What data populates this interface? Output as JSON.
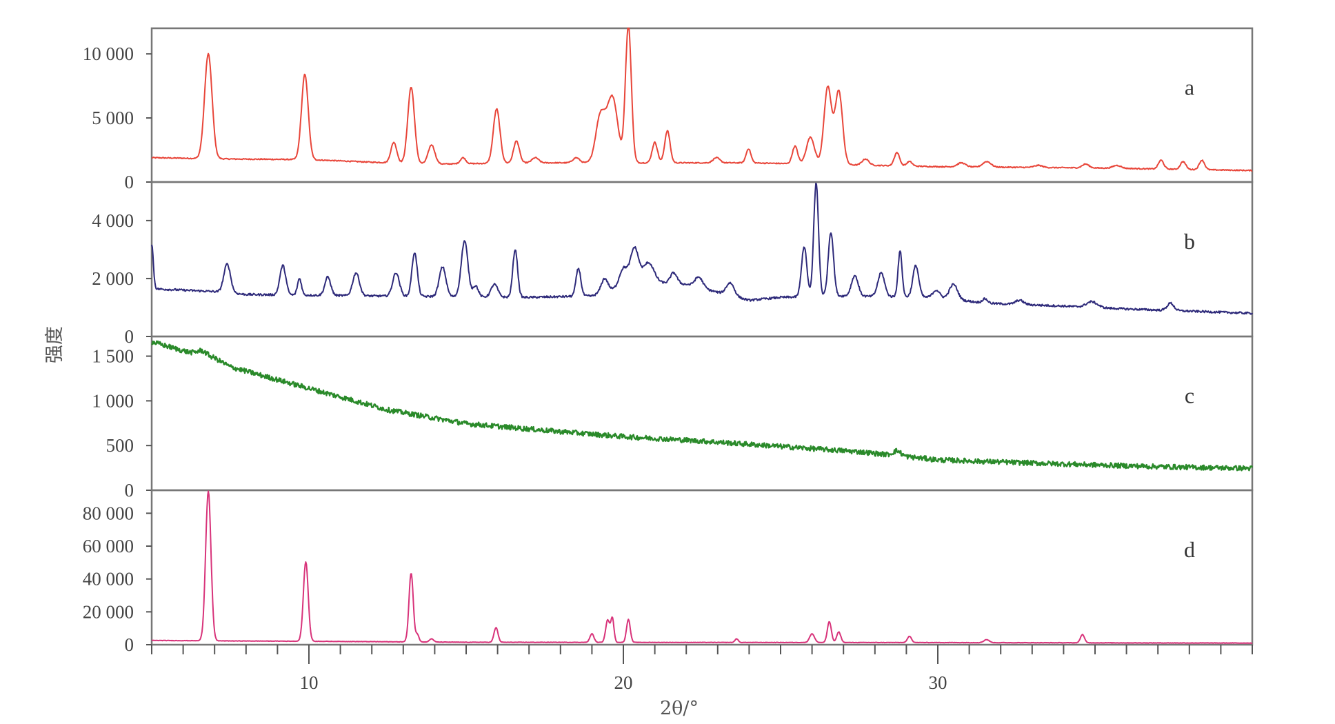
{
  "chart_data": {
    "type": "line",
    "layout": "stacked-panels",
    "xlabel": "2θ/°",
    "ylabel": "强度",
    "xlim": [
      5,
      40
    ],
    "xticks": [
      10,
      20,
      30
    ],
    "xtick_labels": [
      "10",
      "20",
      "30"
    ],
    "x_minor_step": 1,
    "grid": false,
    "panels": [
      {
        "label": "a",
        "color": "#e8463a",
        "ylim": [
          0,
          12000
        ],
        "yticks": [
          0,
          5000,
          10000
        ],
        "ytick_labels": [
          "0",
          "5 000",
          "10 000"
        ],
        "baseline": [
          [
            5,
            1900
          ],
          [
            7.5,
            1800
          ],
          [
            10,
            1750
          ],
          [
            12,
            1550
          ],
          [
            14,
            1400
          ],
          [
            17,
            1500
          ],
          [
            20,
            1500
          ],
          [
            24,
            1500
          ],
          [
            30,
            1200
          ],
          [
            35,
            1100
          ],
          [
            40,
            900
          ]
        ],
        "noise": 40,
        "peaks": [
          [
            6.8,
            10000,
            0.28
          ],
          [
            9.87,
            8400,
            0.25
          ],
          [
            12.7,
            3100,
            0.22
          ],
          [
            13.25,
            7400,
            0.25
          ],
          [
            13.9,
            2900,
            0.25
          ],
          [
            14.9,
            1900,
            0.2
          ],
          [
            15.97,
            5700,
            0.25
          ],
          [
            16.6,
            3200,
            0.22
          ],
          [
            17.2,
            1900,
            0.25
          ],
          [
            18.5,
            1900,
            0.25
          ],
          [
            19.27,
            5100,
            0.35
          ],
          [
            19.65,
            6600,
            0.4
          ],
          [
            20.16,
            12200,
            0.22
          ],
          [
            21.0,
            3100,
            0.2
          ],
          [
            21.4,
            4000,
            0.2
          ],
          [
            22.96,
            1900,
            0.25
          ],
          [
            23.98,
            2600,
            0.18
          ],
          [
            25.46,
            2800,
            0.2
          ],
          [
            25.95,
            3500,
            0.3
          ],
          [
            26.5,
            7400,
            0.28
          ],
          [
            26.85,
            7100,
            0.28
          ],
          [
            27.7,
            1800,
            0.25
          ],
          [
            28.7,
            2300,
            0.2
          ],
          [
            29.1,
            1600,
            0.2
          ],
          [
            30.75,
            1500,
            0.3
          ],
          [
            31.56,
            1600,
            0.3
          ],
          [
            33.2,
            1300,
            0.3
          ],
          [
            34.7,
            1400,
            0.25
          ],
          [
            35.7,
            1300,
            0.3
          ],
          [
            37.1,
            1700,
            0.2
          ],
          [
            37.8,
            1600,
            0.2
          ],
          [
            38.4,
            1700,
            0.2
          ]
        ]
      },
      {
        "label": "b",
        "color": "#2e2a7a",
        "ylim": [
          0,
          5330
        ],
        "yticks": [
          0,
          2000,
          4000
        ],
        "ytick_labels": [
          "0",
          "2 000",
          "4 000"
        ],
        "baseline": [
          [
            5,
            1650
          ],
          [
            7,
            1550
          ],
          [
            8,
            1450
          ],
          [
            12,
            1400
          ],
          [
            17,
            1350
          ],
          [
            19,
            1400
          ],
          [
            20.5,
            1900
          ],
          [
            22,
            1800
          ],
          [
            24,
            1250
          ],
          [
            25,
            1350
          ],
          [
            27,
            1400
          ],
          [
            30,
            1350
          ],
          [
            31.5,
            1150
          ],
          [
            34,
            1050
          ],
          [
            36,
            950
          ],
          [
            40,
            800
          ]
        ],
        "noise": 35,
        "peaks": [
          [
            5.0,
            3200,
            0.12
          ],
          [
            7.4,
            2500,
            0.25
          ],
          [
            9.17,
            2450,
            0.22
          ],
          [
            9.7,
            2000,
            0.15
          ],
          [
            10.6,
            2050,
            0.22
          ],
          [
            11.5,
            2200,
            0.25
          ],
          [
            12.77,
            2200,
            0.25
          ],
          [
            13.36,
            2900,
            0.2
          ],
          [
            14.25,
            2400,
            0.25
          ],
          [
            14.95,
            3300,
            0.25
          ],
          [
            15.3,
            1750,
            0.2
          ],
          [
            15.9,
            1800,
            0.25
          ],
          [
            16.56,
            3000,
            0.18
          ],
          [
            18.57,
            2350,
            0.18
          ],
          [
            19.4,
            2000,
            0.25
          ],
          [
            20.0,
            2350,
            0.3
          ],
          [
            20.35,
            3050,
            0.3
          ],
          [
            20.8,
            2550,
            0.4
          ],
          [
            21.6,
            2200,
            0.25
          ],
          [
            22.4,
            2050,
            0.3
          ],
          [
            23.4,
            1850,
            0.3
          ],
          [
            25.75,
            3100,
            0.2
          ],
          [
            26.13,
            5300,
            0.18
          ],
          [
            26.6,
            3600,
            0.2
          ],
          [
            27.36,
            2100,
            0.25
          ],
          [
            28.2,
            2200,
            0.25
          ],
          [
            28.8,
            2950,
            0.15
          ],
          [
            29.3,
            2450,
            0.22
          ],
          [
            29.95,
            1600,
            0.25
          ],
          [
            30.5,
            1800,
            0.3
          ],
          [
            31.5,
            1300,
            0.2
          ],
          [
            32.6,
            1250,
            0.3
          ],
          [
            34.9,
            1200,
            0.4
          ],
          [
            37.4,
            1150,
            0.25
          ]
        ]
      },
      {
        "label": "c",
        "color": "#2a8a2a",
        "ylim": [
          0,
          1720
        ],
        "yticks": [
          0,
          500,
          1000,
          1500
        ],
        "ytick_labels": [
          "0",
          "500",
          "1 000",
          "1 500"
        ],
        "baseline": [
          [
            5,
            1660
          ],
          [
            6,
            1560
          ],
          [
            7,
            1480
          ],
          [
            7.5,
            1380
          ],
          [
            10,
            1140
          ],
          [
            12.5,
            900
          ],
          [
            15,
            745
          ],
          [
            17.5,
            670
          ],
          [
            20,
            600
          ],
          [
            22.5,
            550
          ],
          [
            25,
            490
          ],
          [
            27.5,
            430
          ],
          [
            30,
            340
          ],
          [
            32.5,
            310
          ],
          [
            35,
            283
          ],
          [
            37.5,
            260
          ],
          [
            40,
            245
          ]
        ],
        "noise": 28,
        "peaks": [
          [
            6.6,
            1560,
            0.35
          ],
          [
            28.7,
            440,
            0.3
          ]
        ]
      },
      {
        "label": "d",
        "color": "#d8337a",
        "ylim": [
          0,
          94000
        ],
        "yticks": [
          0,
          20000,
          40000,
          60000,
          80000
        ],
        "ytick_labels": [
          "0",
          "20 000",
          "40 000",
          "60 000",
          "80 000"
        ],
        "baseline": [
          [
            5,
            2600
          ],
          [
            7.5,
            2300
          ],
          [
            10,
            2100
          ],
          [
            15,
            1500
          ],
          [
            20,
            1400
          ],
          [
            30,
            1300
          ],
          [
            40,
            1000
          ]
        ],
        "noise": 120,
        "peaks": [
          [
            6.8,
            93500,
            0.2
          ],
          [
            9.9,
            50400,
            0.18
          ],
          [
            13.25,
            43600,
            0.16
          ],
          [
            13.45,
            6200,
            0.12
          ],
          [
            13.9,
            3600,
            0.15
          ],
          [
            15.95,
            10400,
            0.15
          ],
          [
            19.0,
            6700,
            0.15
          ],
          [
            19.5,
            15000,
            0.15
          ],
          [
            19.65,
            16000,
            0.12
          ],
          [
            20.16,
            15500,
            0.14
          ],
          [
            23.6,
            3600,
            0.12
          ],
          [
            26.0,
            6700,
            0.18
          ],
          [
            26.55,
            14000,
            0.15
          ],
          [
            26.85,
            7800,
            0.15
          ],
          [
            29.1,
            5200,
            0.15
          ],
          [
            31.55,
            3100,
            0.2
          ],
          [
            34.6,
            6200,
            0.15
          ]
        ]
      }
    ]
  }
}
